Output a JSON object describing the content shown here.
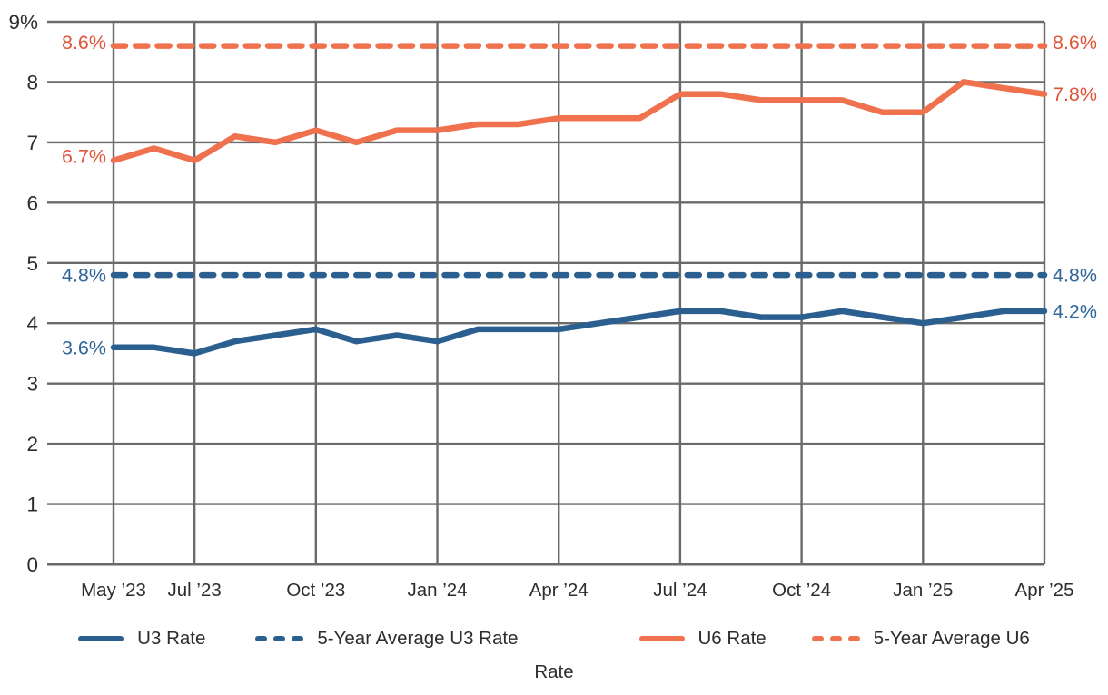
{
  "colors": {
    "u3_line": "#2B5F90",
    "u6_line": "#F0714E",
    "u3_label": "#31669B",
    "u6_label": "#E05539",
    "grid": "#6A6A6A",
    "axis_text": "#2D2D2D"
  },
  "chart_data": {
    "type": "line",
    "title": "",
    "xlabel": "",
    "ylabel": "",
    "grid": true,
    "legend_position": "bottom",
    "ylim": [
      0,
      9
    ],
    "months_span": "May 2023 - Apr 2025 (monthly, 24 points)",
    "y_ticks": [
      {
        "label": "9%",
        "value": 9
      },
      {
        "label": "8",
        "value": 8
      },
      {
        "label": "7",
        "value": 7
      },
      {
        "label": "6",
        "value": 6
      },
      {
        "label": "5",
        "value": 5
      },
      {
        "label": "4",
        "value": 4
      },
      {
        "label": "3",
        "value": 3
      },
      {
        "label": "2",
        "value": 2
      },
      {
        "label": "1",
        "value": 1
      },
      {
        "label": "0",
        "value": 0
      }
    ],
    "x_ticks": [
      {
        "label": "May ’23",
        "index": 0
      },
      {
        "label": "Jul ’23",
        "index": 2
      },
      {
        "label": "Oct ’23",
        "index": 5
      },
      {
        "label": "Jan ’24",
        "index": 8
      },
      {
        "label": "Apr ’24",
        "index": 11
      },
      {
        "label": "Jul ’24",
        "index": 14
      },
      {
        "label": "Oct ’24",
        "index": 17
      },
      {
        "label": "Jan ’25",
        "index": 20
      },
      {
        "label": "Apr ’25",
        "index": 23
      }
    ],
    "series": [
      {
        "name": "5-Year Average U6 Rate",
        "kind": "hline",
        "dash": "dashed",
        "color": "#F0714E",
        "value": 8.6
      },
      {
        "name": "5-Year Average U3 Rate",
        "kind": "hline",
        "dash": "dashed",
        "color": "#2B5F90",
        "value": 4.8
      },
      {
        "name": "U6 Rate",
        "kind": "line",
        "dash": "solid",
        "color": "#F0714E",
        "values": [
          6.7,
          6.9,
          6.7,
          7.1,
          7.0,
          7.2,
          7.0,
          7.2,
          7.2,
          7.3,
          7.3,
          7.4,
          7.4,
          7.4,
          7.8,
          7.8,
          7.7,
          7.7,
          7.7,
          7.5,
          7.5,
          8.0,
          7.9,
          7.8
        ]
      },
      {
        "name": "U3 Rate",
        "kind": "line",
        "dash": "solid",
        "color": "#2B5F90",
        "values": [
          3.6,
          3.6,
          3.5,
          3.7,
          3.8,
          3.9,
          3.7,
          3.8,
          3.7,
          3.9,
          3.9,
          3.9,
          4.0,
          4.1,
          4.2,
          4.2,
          4.1,
          4.1,
          4.2,
          4.1,
          4.0,
          4.1,
          4.2,
          4.2
        ]
      }
    ],
    "annotations": [
      {
        "text": "8.6%",
        "value": 8.6,
        "side": "left",
        "color": "#E05539",
        "dy": -4
      },
      {
        "text": "6.7%",
        "value": 6.7,
        "side": "left",
        "color": "#E05539",
        "dy": -5
      },
      {
        "text": "4.8%",
        "value": 4.8,
        "side": "left",
        "color": "#31669B",
        "dy": 0
      },
      {
        "text": "3.6%",
        "value": 3.6,
        "side": "left",
        "color": "#31669B",
        "dy": 0
      },
      {
        "text": "8.6%",
        "value": 8.6,
        "side": "right",
        "color": "#E05539",
        "dy": -4
      },
      {
        "text": "7.8%",
        "value": 7.8,
        "side": "right",
        "color": "#E05539",
        "dy": 0
      },
      {
        "text": "4.8%",
        "value": 4.8,
        "side": "right",
        "color": "#31669B",
        "dy": 0
      },
      {
        "text": "4.2%",
        "value": 4.2,
        "side": "right",
        "color": "#31669B",
        "dy": 0
      }
    ]
  },
  "legend": {
    "items": [
      {
        "label": "U3 Rate",
        "color": "#2B5F90",
        "dash": "solid"
      },
      {
        "label": "5-Year Average U3 Rate",
        "color": "#2B5F90",
        "dash": "dashed"
      },
      {
        "label": "U6 Rate",
        "color": "#F0714E",
        "dash": "solid"
      },
      {
        "label": "5-Year Average U6 Rate",
        "label_line1": "5-Year Average U6",
        "label_line2": "Rate",
        "color": "#F0714E",
        "dash": "dashed"
      }
    ]
  }
}
